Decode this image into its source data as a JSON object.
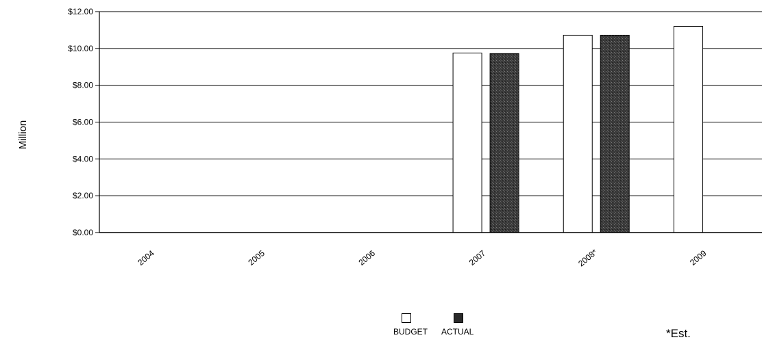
{
  "chart_data": {
    "type": "bar",
    "title": "",
    "xlabel": "",
    "ylabel": "Million",
    "ylim": [
      0,
      12
    ],
    "y_tick_labels": [
      "$0.00",
      "$2.00",
      "$4.00",
      "$6.00",
      "$8.00",
      "$10.00",
      "$12.00"
    ],
    "y_ticks": [
      0,
      2,
      4,
      6,
      8,
      10,
      12
    ],
    "categories": [
      "2004",
      "2005",
      "2006",
      "2007",
      "2008*",
      "2009"
    ],
    "series": [
      {
        "name": "BUDGET",
        "color": "#ffffff",
        "values": [
          0,
          0,
          0,
          9.75,
          10.72,
          11.2
        ]
      },
      {
        "name": "ACTUAL",
        "color": "#2a2a2a",
        "values": [
          0,
          0,
          0,
          9.72,
          10.72,
          null
        ]
      }
    ],
    "grid": true,
    "legend_position": "bottom-center",
    "footnote": "*Est."
  }
}
